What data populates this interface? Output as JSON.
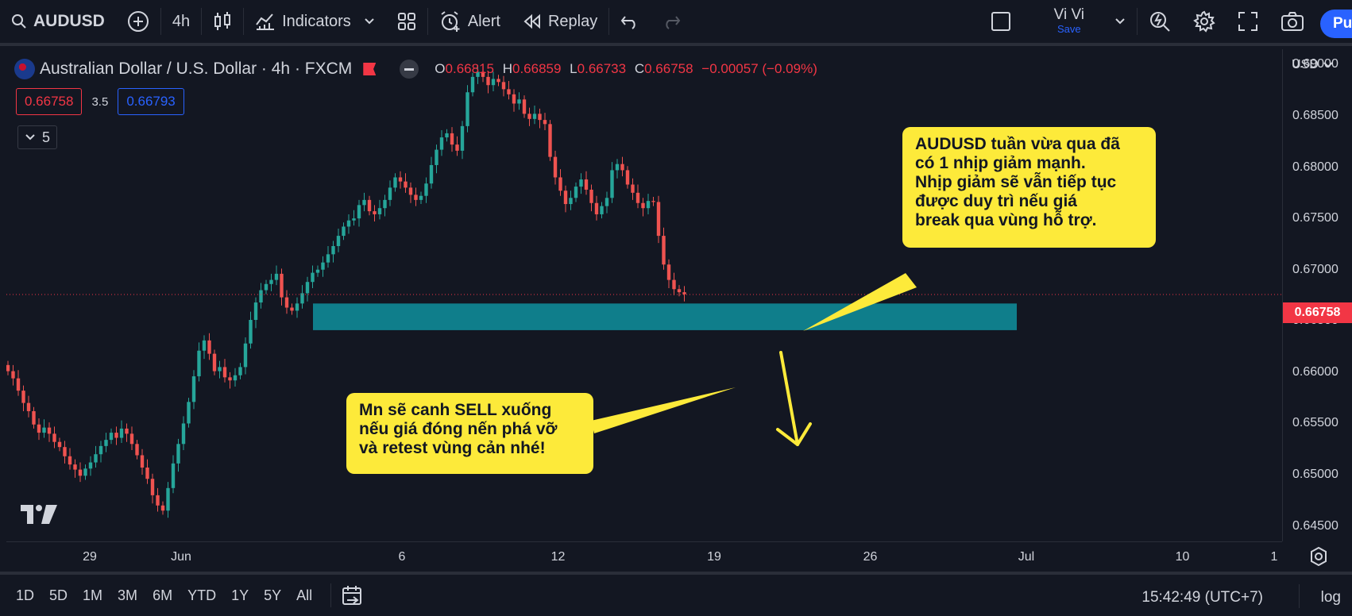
{
  "toolbar": {
    "symbol": "AUDUSD",
    "interval": "4h",
    "indicators_label": "Indicators",
    "alert_label": "Alert",
    "replay_label": "Replay",
    "user_name": "Vi Vi",
    "save_label": "Save",
    "publish_label": "Pu"
  },
  "legend": {
    "title": "Australian Dollar / U.S. Dollar · 4h · FXCM",
    "open_key": "O",
    "open": "0.66815",
    "high_key": "H",
    "high": "0.66859",
    "low_key": "L",
    "low": "0.66733",
    "close_key": "C",
    "close": "0.66758",
    "change": "−0.00057 (−0.09%)",
    "sell_price": "0.66758",
    "spread": "3.5",
    "buy_price": "0.66793",
    "collapse_count": "5"
  },
  "annotations": {
    "callout_1": "AUDUSD tuần vừa qua đã\ncó 1 nhịp giảm mạnh.\nNhịp giảm sẽ vẫn tiếp tục\nđược duy trì nếu giá\nbreak qua vùng hỗ trợ.",
    "callout_2": "Mn sẽ canh SELL xuống\nnếu giá đóng nến phá vỡ\nvà retest vùng cản nhé!"
  },
  "price_axis": {
    "currency": "USD",
    "labels": [
      "0.69000",
      "0.68500",
      "0.68000",
      "0.67500",
      "0.67000",
      "0.66500",
      "0.66000",
      "0.65500",
      "0.65000",
      "0.64500"
    ],
    "last_price": "0.66758"
  },
  "time_axis": {
    "labels": [
      "29",
      "Jun",
      "6",
      "12",
      "19",
      "26",
      "Jul",
      "10",
      "1"
    ]
  },
  "bottom_bar": {
    "ranges": [
      "1D",
      "5D",
      "1M",
      "3M",
      "6M",
      "YTD",
      "1Y",
      "5Y",
      "All"
    ],
    "clock": "15:42:49 (UTC+7)",
    "log_label": "log"
  },
  "colors": {
    "background": "#131722",
    "up": "#26a69a",
    "down": "#ef5350",
    "zone": "#0f7e8b",
    "callout": "#fdea3a",
    "accent": "#2962ff"
  },
  "chart_data": {
    "type": "candlestick",
    "symbol": "AUDUSD",
    "timeframe": "4h",
    "ylim": [
      0.6435,
      0.6915
    ],
    "support_zone": {
      "from": 0.6641,
      "to": 0.6667
    },
    "last_price": 0.66758,
    "series_close": [
      0.6601,
      0.6594,
      0.6582,
      0.657,
      0.6562,
      0.6549,
      0.6541,
      0.6546,
      0.654,
      0.6532,
      0.6527,
      0.6518,
      0.651,
      0.6505,
      0.6499,
      0.6506,
      0.6512,
      0.652,
      0.6528,
      0.6534,
      0.6541,
      0.6536,
      0.6545,
      0.654,
      0.653,
      0.6519,
      0.6507,
      0.6496,
      0.648,
      0.647,
      0.6465,
      0.6487,
      0.6511,
      0.653,
      0.655,
      0.6571,
      0.6596,
      0.6621,
      0.6631,
      0.6618,
      0.6601,
      0.6605,
      0.6595,
      0.6592,
      0.6597,
      0.6605,
      0.6628,
      0.6651,
      0.6668,
      0.668,
      0.6686,
      0.669,
      0.6696,
      0.6673,
      0.6663,
      0.666,
      0.6667,
      0.6677,
      0.6688,
      0.6697,
      0.67,
      0.6707,
      0.6715,
      0.6723,
      0.6733,
      0.6742,
      0.6748,
      0.675,
      0.6763,
      0.6768,
      0.6757,
      0.6754,
      0.676,
      0.6768,
      0.678,
      0.679,
      0.6786,
      0.678,
      0.6773,
      0.6768,
      0.6772,
      0.6784,
      0.6802,
      0.6817,
      0.6829,
      0.6833,
      0.6822,
      0.6816,
      0.684,
      0.6873,
      0.6888,
      0.6893,
      0.6888,
      0.688,
      0.6886,
      0.6883,
      0.6876,
      0.6871,
      0.6862,
      0.6866,
      0.6852,
      0.6847,
      0.6852,
      0.6846,
      0.6842,
      0.681,
      0.679,
      0.6777,
      0.6764,
      0.677,
      0.6781,
      0.6788,
      0.6778,
      0.6765,
      0.6754,
      0.6762,
      0.677,
      0.6797,
      0.6803,
      0.6797,
      0.6783,
      0.6775,
      0.6765,
      0.676,
      0.6767,
      0.6766,
      0.6733,
      0.6705,
      0.669,
      0.6681,
      0.6678,
      0.6676
    ]
  }
}
